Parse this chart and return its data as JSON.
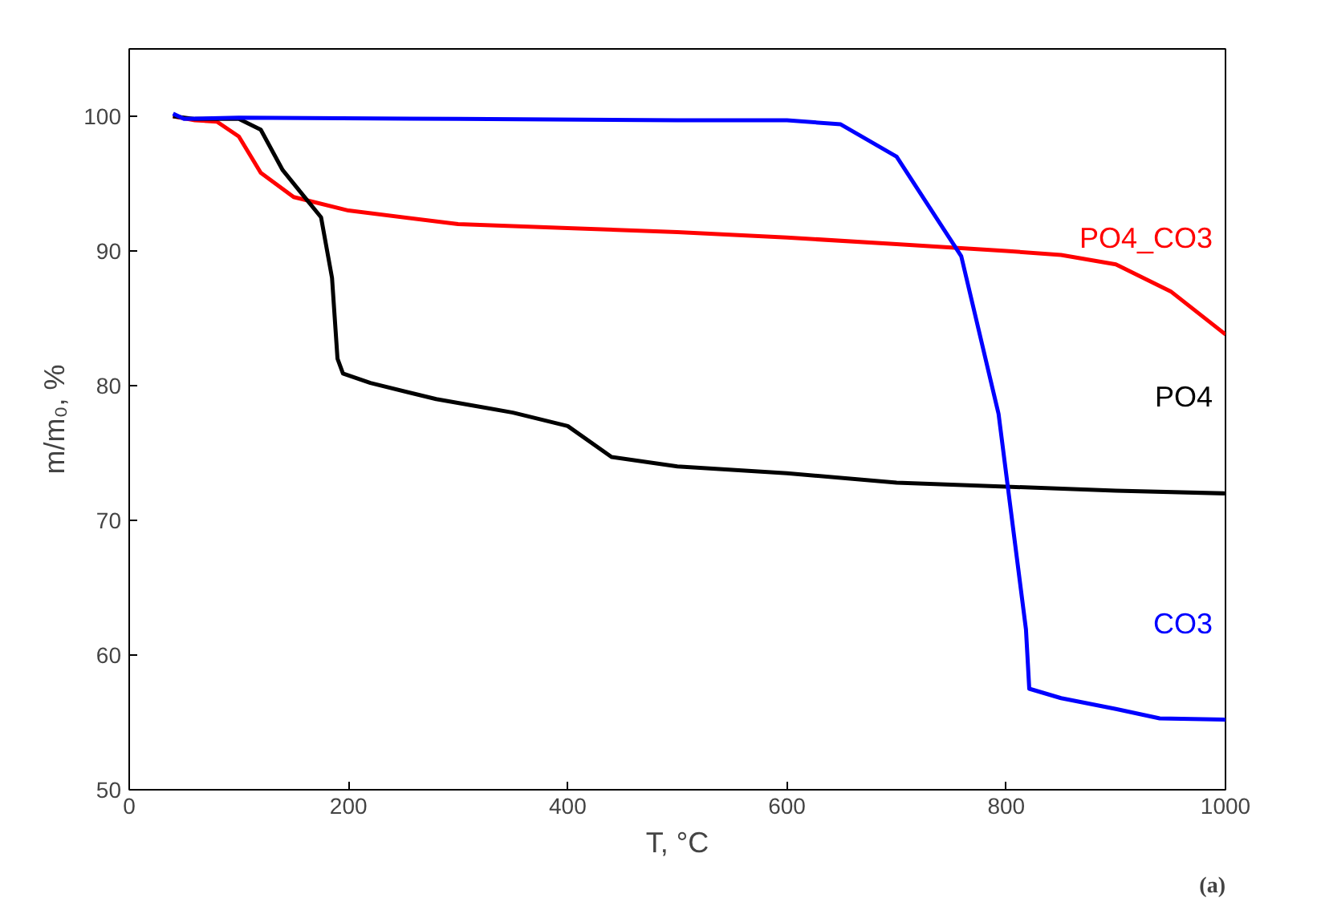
{
  "chart_data": {
    "type": "line",
    "xlabel": "T, °C",
    "ylabel": "m/m₀, %",
    "xlim": [
      0,
      1000
    ],
    "ylim": [
      50,
      105
    ],
    "xticks": [
      0,
      200,
      400,
      600,
      800,
      1000
    ],
    "yticks": [
      50,
      60,
      70,
      80,
      90,
      100
    ],
    "grid": false,
    "line_style": "solid",
    "marker": "none",
    "series": [
      {
        "name": "PO4_CO3",
        "color": "#ff0000",
        "x": [
          40,
          60,
          80,
          100,
          120,
          150,
          200,
          300,
          400,
          500,
          600,
          700,
          800,
          850,
          900,
          950,
          1000
        ],
        "values": [
          100,
          99.7,
          99.6,
          98.5,
          95.8,
          94,
          93,
          92,
          91.7,
          91.4,
          91,
          90.5,
          90,
          89.7,
          89,
          87,
          83.8
        ]
      },
      {
        "name": "PO4",
        "color": "#000000",
        "x": [
          40,
          60,
          100,
          120,
          140,
          160,
          175,
          185,
          190,
          195,
          220,
          280,
          350,
          400,
          440,
          500,
          600,
          700,
          800,
          900,
          1000
        ],
        "values": [
          100,
          99.8,
          99.8,
          99,
          96,
          94,
          92.5,
          88,
          82,
          80.9,
          80.2,
          79,
          78,
          77,
          74.7,
          74,
          73.5,
          72.8,
          72.5,
          72.2,
          72
        ]
      },
      {
        "name": "CO3",
        "color": "#0000ff",
        "x": [
          40,
          50,
          100,
          300,
          500,
          600,
          649,
          700,
          759,
          793,
          818,
          821,
          850,
          900,
          940,
          1000
        ],
        "values": [
          100.2,
          99.8,
          99.9,
          99.8,
          99.7,
          99.7,
          99.4,
          97,
          89.6,
          77.9,
          61.9,
          57.5,
          56.8,
          56,
          55.3,
          55.2
        ]
      }
    ],
    "annotations": [
      "(a)"
    ]
  }
}
